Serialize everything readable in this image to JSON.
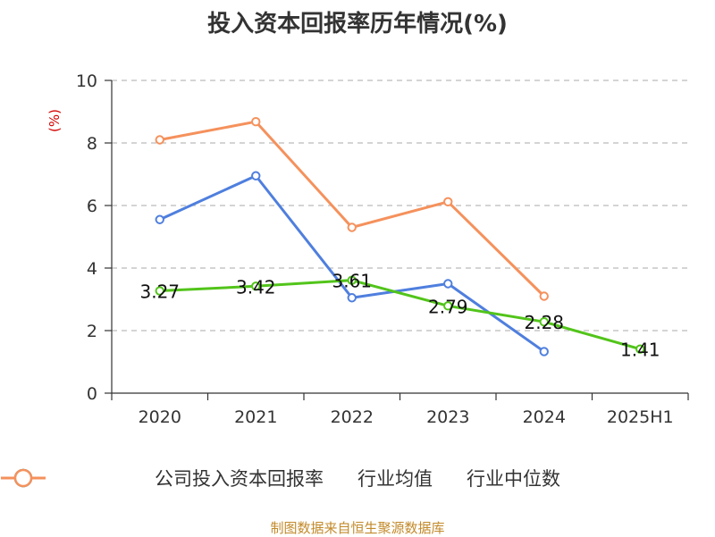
{
  "chart_data": {
    "type": "line",
    "title": "投入资本回报率历年情况(%)",
    "ylabel": "(%)",
    "xlabel": "",
    "categories": [
      "2020",
      "2021",
      "2022",
      "2023",
      "2024",
      "2025H1"
    ],
    "ylim": [
      0,
      10
    ],
    "yticks": [
      0,
      2,
      4,
      6,
      8,
      10
    ],
    "grid": true,
    "legend_position": "bottom",
    "series": [
      {
        "name": "公司投入资本回报率",
        "color": "#52c41a",
        "values": [
          3.27,
          3.42,
          3.61,
          2.79,
          2.28,
          1.41
        ],
        "labels": [
          "3.27",
          "3.42",
          "3.61",
          "2.79",
          "2.28",
          "1.41"
        ]
      },
      {
        "name": "行业均值",
        "color": "#4f7fde",
        "values": [
          5.55,
          6.95,
          3.05,
          3.5,
          1.33,
          null
        ]
      },
      {
        "name": "行业中位数",
        "color": "#f5915c",
        "values": [
          8.1,
          8.68,
          5.3,
          6.12,
          3.1,
          null
        ]
      }
    ]
  },
  "footer": {
    "source": "制图数据来自恒生聚源数据库"
  }
}
